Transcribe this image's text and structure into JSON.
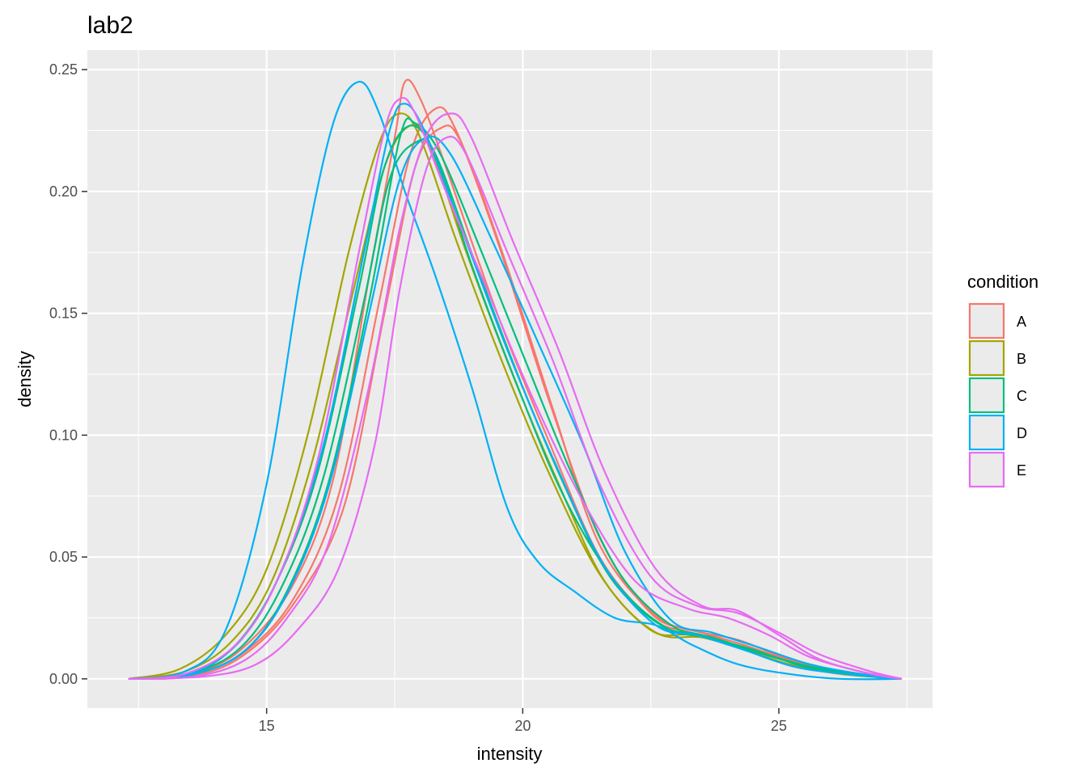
{
  "chart_data": {
    "type": "line",
    "title": "lab2",
    "xlabel": "intensity",
    "ylabel": "density",
    "xlim": [
      11.5,
      28.0
    ],
    "ylim": [
      -0.012,
      0.258
    ],
    "x_ticks": [
      15,
      20,
      25
    ],
    "x_tick_labels": [
      "15",
      "20",
      "25"
    ],
    "y_ticks": [
      0.0,
      0.05,
      0.1,
      0.15,
      0.2,
      0.25
    ],
    "y_tick_labels": [
      "0.00",
      "0.05",
      "0.10",
      "0.15",
      "0.20",
      "0.25"
    ],
    "grid": true,
    "legend": {
      "title": "condition",
      "placement": "right",
      "entries": [
        {
          "label": "A",
          "color": "#F8766D"
        },
        {
          "label": "B",
          "color": "#A3A500"
        },
        {
          "label": "C",
          "color": "#00BF7D"
        },
        {
          "label": "D",
          "color": "#00B0F6"
        },
        {
          "label": "E",
          "color": "#E76BF3"
        }
      ]
    },
    "series": [
      {
        "condition": "A",
        "color": "#F8766D",
        "points": [
          [
            12.3,
            0.0
          ],
          [
            13.5,
            0.002
          ],
          [
            14.5,
            0.012
          ],
          [
            15.5,
            0.038
          ],
          [
            16.3,
            0.082
          ],
          [
            17.0,
            0.165
          ],
          [
            17.5,
            0.222
          ],
          [
            17.7,
            0.245
          ],
          [
            18.0,
            0.238
          ],
          [
            18.5,
            0.21
          ],
          [
            19.5,
            0.15
          ],
          [
            20.5,
            0.098
          ],
          [
            21.5,
            0.05
          ],
          [
            22.5,
            0.025
          ],
          [
            23.3,
            0.019
          ],
          [
            24.0,
            0.015
          ],
          [
            25.0,
            0.007
          ],
          [
            26.0,
            0.003
          ],
          [
            27.4,
            0.0
          ]
        ]
      },
      {
        "condition": "A",
        "color": "#F8766D",
        "points": [
          [
            12.3,
            0.0
          ],
          [
            13.5,
            0.002
          ],
          [
            14.5,
            0.01
          ],
          [
            15.5,
            0.032
          ],
          [
            16.4,
            0.075
          ],
          [
            17.2,
            0.155
          ],
          [
            17.8,
            0.215
          ],
          [
            18.3,
            0.234
          ],
          [
            18.7,
            0.225
          ],
          [
            19.5,
            0.18
          ],
          [
            20.5,
            0.115
          ],
          [
            21.5,
            0.058
          ],
          [
            22.5,
            0.027
          ],
          [
            23.3,
            0.02
          ],
          [
            24.2,
            0.016
          ],
          [
            25.2,
            0.008
          ],
          [
            26.2,
            0.003
          ],
          [
            27.4,
            0.0
          ]
        ]
      },
      {
        "condition": "A",
        "color": "#F8766D",
        "points": [
          [
            12.3,
            0.0
          ],
          [
            13.5,
            0.001
          ],
          [
            14.5,
            0.009
          ],
          [
            15.5,
            0.03
          ],
          [
            16.5,
            0.07
          ],
          [
            17.3,
            0.15
          ],
          [
            17.9,
            0.21
          ],
          [
            18.4,
            0.226
          ],
          [
            18.8,
            0.22
          ],
          [
            19.6,
            0.175
          ],
          [
            20.6,
            0.11
          ],
          [
            21.5,
            0.055
          ],
          [
            22.6,
            0.026
          ],
          [
            23.5,
            0.019
          ],
          [
            24.3,
            0.014
          ],
          [
            25.3,
            0.007
          ],
          [
            26.3,
            0.003
          ],
          [
            27.4,
            0.0
          ]
        ]
      },
      {
        "condition": "B",
        "color": "#A3A500",
        "points": [
          [
            12.3,
            0.0
          ],
          [
            13.3,
            0.004
          ],
          [
            14.2,
            0.018
          ],
          [
            15.0,
            0.045
          ],
          [
            15.8,
            0.1
          ],
          [
            16.6,
            0.175
          ],
          [
            17.2,
            0.22
          ],
          [
            17.6,
            0.232
          ],
          [
            18.0,
            0.222
          ],
          [
            18.7,
            0.18
          ],
          [
            19.6,
            0.13
          ],
          [
            20.5,
            0.085
          ],
          [
            21.5,
            0.043
          ],
          [
            22.5,
            0.02
          ],
          [
            23.3,
            0.018
          ],
          [
            24.2,
            0.013
          ],
          [
            25.2,
            0.006
          ],
          [
            26.2,
            0.002
          ],
          [
            27.4,
            0.0
          ]
        ]
      },
      {
        "condition": "B",
        "color": "#A3A500",
        "points": [
          [
            12.3,
            0.0
          ],
          [
            13.4,
            0.003
          ],
          [
            14.3,
            0.015
          ],
          [
            15.1,
            0.04
          ],
          [
            15.9,
            0.09
          ],
          [
            16.7,
            0.16
          ],
          [
            17.3,
            0.21
          ],
          [
            17.8,
            0.227
          ],
          [
            18.2,
            0.218
          ],
          [
            18.9,
            0.175
          ],
          [
            19.8,
            0.125
          ],
          [
            20.7,
            0.08
          ],
          [
            21.6,
            0.04
          ],
          [
            22.6,
            0.019
          ],
          [
            23.5,
            0.017
          ],
          [
            24.4,
            0.012
          ],
          [
            25.4,
            0.006
          ],
          [
            26.4,
            0.002
          ],
          [
            27.4,
            0.0
          ]
        ]
      },
      {
        "condition": "C",
        "color": "#00BF7D",
        "points": [
          [
            12.3,
            0.0
          ],
          [
            13.5,
            0.002
          ],
          [
            14.4,
            0.014
          ],
          [
            15.2,
            0.04
          ],
          [
            16.0,
            0.085
          ],
          [
            16.8,
            0.16
          ],
          [
            17.3,
            0.21
          ],
          [
            17.8,
            0.227
          ],
          [
            18.3,
            0.215
          ],
          [
            19.0,
            0.175
          ],
          [
            19.9,
            0.125
          ],
          [
            20.8,
            0.08
          ],
          [
            21.7,
            0.042
          ],
          [
            22.7,
            0.022
          ],
          [
            23.5,
            0.018
          ],
          [
            24.4,
            0.012
          ],
          [
            25.4,
            0.006
          ],
          [
            26.4,
            0.002
          ],
          [
            27.4,
            0.0
          ]
        ]
      },
      {
        "condition": "C",
        "color": "#00BF7D",
        "points": [
          [
            12.3,
            0.0
          ],
          [
            13.5,
            0.002
          ],
          [
            14.5,
            0.013
          ],
          [
            15.3,
            0.038
          ],
          [
            16.1,
            0.082
          ],
          [
            16.9,
            0.155
          ],
          [
            17.4,
            0.205
          ],
          [
            17.9,
            0.22
          ],
          [
            18.3,
            0.215
          ],
          [
            19.0,
            0.17
          ],
          [
            19.9,
            0.12
          ],
          [
            20.8,
            0.075
          ],
          [
            21.8,
            0.04
          ],
          [
            22.8,
            0.021
          ],
          [
            23.6,
            0.017
          ],
          [
            24.5,
            0.012
          ],
          [
            25.5,
            0.005
          ],
          [
            26.5,
            0.002
          ],
          [
            27.4,
            0.0
          ]
        ]
      },
      {
        "condition": "C",
        "color": "#00BF7D",
        "points": [
          [
            12.3,
            0.0
          ],
          [
            13.6,
            0.002
          ],
          [
            14.6,
            0.012
          ],
          [
            15.4,
            0.036
          ],
          [
            16.2,
            0.08
          ],
          [
            17.0,
            0.155
          ],
          [
            17.6,
            0.222
          ],
          [
            17.9,
            0.228
          ],
          [
            18.4,
            0.215
          ],
          [
            19.2,
            0.175
          ],
          [
            20.1,
            0.128
          ],
          [
            21.0,
            0.082
          ],
          [
            21.9,
            0.043
          ],
          [
            22.9,
            0.022
          ],
          [
            23.7,
            0.017
          ],
          [
            24.6,
            0.011
          ],
          [
            25.6,
            0.005
          ],
          [
            26.6,
            0.002
          ],
          [
            27.4,
            0.0
          ]
        ]
      },
      {
        "condition": "D",
        "color": "#00B0F6",
        "points": [
          [
            12.3,
            0.0
          ],
          [
            13.4,
            0.003
          ],
          [
            14.2,
            0.02
          ],
          [
            15.0,
            0.08
          ],
          [
            15.7,
            0.17
          ],
          [
            16.3,
            0.228
          ],
          [
            16.8,
            0.245
          ],
          [
            17.2,
            0.232
          ],
          [
            17.7,
            0.2
          ],
          [
            18.3,
            0.165
          ],
          [
            19.0,
            0.12
          ],
          [
            19.7,
            0.07
          ],
          [
            20.3,
            0.048
          ],
          [
            21.0,
            0.036
          ],
          [
            21.8,
            0.025
          ],
          [
            22.6,
            0.022
          ],
          [
            23.3,
            0.014
          ],
          [
            24.2,
            0.006
          ],
          [
            25.2,
            0.002
          ],
          [
            26.2,
            0.0
          ],
          [
            27.4,
            0.0
          ]
        ]
      },
      {
        "condition": "D",
        "color": "#00B0F6",
        "points": [
          [
            12.3,
            0.0
          ],
          [
            13.5,
            0.002
          ],
          [
            14.5,
            0.016
          ],
          [
            15.3,
            0.045
          ],
          [
            16.1,
            0.095
          ],
          [
            16.9,
            0.175
          ],
          [
            17.4,
            0.225
          ],
          [
            17.7,
            0.236
          ],
          [
            18.1,
            0.224
          ],
          [
            18.8,
            0.185
          ],
          [
            19.7,
            0.135
          ],
          [
            20.6,
            0.09
          ],
          [
            21.6,
            0.046
          ],
          [
            22.6,
            0.022
          ],
          [
            23.4,
            0.018
          ],
          [
            24.3,
            0.012
          ],
          [
            25.3,
            0.005
          ],
          [
            26.3,
            0.002
          ],
          [
            27.4,
            0.0
          ]
        ]
      },
      {
        "condition": "D",
        "color": "#00B0F6",
        "points": [
          [
            12.3,
            0.0
          ],
          [
            13.6,
            0.002
          ],
          [
            14.6,
            0.012
          ],
          [
            15.4,
            0.035
          ],
          [
            16.2,
            0.078
          ],
          [
            17.0,
            0.15
          ],
          [
            17.6,
            0.205
          ],
          [
            18.1,
            0.222
          ],
          [
            18.6,
            0.215
          ],
          [
            19.4,
            0.18
          ],
          [
            20.3,
            0.138
          ],
          [
            21.2,
            0.095
          ],
          [
            22.0,
            0.052
          ],
          [
            22.9,
            0.024
          ],
          [
            23.7,
            0.019
          ],
          [
            24.6,
            0.013
          ],
          [
            25.6,
            0.006
          ],
          [
            26.6,
            0.002
          ],
          [
            27.4,
            0.0
          ]
        ]
      },
      {
        "condition": "E",
        "color": "#E76BF3",
        "points": [
          [
            12.3,
            0.0
          ],
          [
            13.4,
            0.002
          ],
          [
            14.4,
            0.014
          ],
          [
            15.2,
            0.04
          ],
          [
            16.0,
            0.09
          ],
          [
            16.8,
            0.175
          ],
          [
            17.3,
            0.225
          ],
          [
            17.6,
            0.238
          ],
          [
            17.9,
            0.232
          ],
          [
            18.5,
            0.2
          ],
          [
            19.3,
            0.16
          ],
          [
            20.2,
            0.115
          ],
          [
            21.2,
            0.072
          ],
          [
            22.2,
            0.04
          ],
          [
            23.2,
            0.029
          ],
          [
            24.0,
            0.025
          ],
          [
            24.8,
            0.018
          ],
          [
            25.6,
            0.009
          ],
          [
            26.6,
            0.003
          ],
          [
            27.4,
            0.0
          ]
        ]
      },
      {
        "condition": "E",
        "color": "#E76BF3",
        "points": [
          [
            12.3,
            0.0
          ],
          [
            13.6,
            0.001
          ],
          [
            14.6,
            0.008
          ],
          [
            15.4,
            0.025
          ],
          [
            16.2,
            0.055
          ],
          [
            17.0,
            0.12
          ],
          [
            17.6,
            0.185
          ],
          [
            18.1,
            0.222
          ],
          [
            18.6,
            0.232
          ],
          [
            19.0,
            0.222
          ],
          [
            19.8,
            0.18
          ],
          [
            20.7,
            0.135
          ],
          [
            21.6,
            0.085
          ],
          [
            22.6,
            0.045
          ],
          [
            23.5,
            0.03
          ],
          [
            24.2,
            0.028
          ],
          [
            25.0,
            0.018
          ],
          [
            25.8,
            0.008
          ],
          [
            26.8,
            0.002
          ],
          [
            27.4,
            0.0
          ]
        ]
      },
      {
        "condition": "E",
        "color": "#E76BF3",
        "points": [
          [
            12.3,
            0.0
          ],
          [
            13.8,
            0.001
          ],
          [
            14.8,
            0.006
          ],
          [
            15.6,
            0.02
          ],
          [
            16.4,
            0.045
          ],
          [
            17.1,
            0.095
          ],
          [
            17.6,
            0.16
          ],
          [
            18.1,
            0.208
          ],
          [
            18.5,
            0.222
          ],
          [
            18.9,
            0.215
          ],
          [
            19.7,
            0.175
          ],
          [
            20.6,
            0.13
          ],
          [
            21.5,
            0.08
          ],
          [
            22.5,
            0.042
          ],
          [
            23.4,
            0.03
          ],
          [
            24.2,
            0.027
          ],
          [
            25.0,
            0.019
          ],
          [
            25.8,
            0.01
          ],
          [
            26.8,
            0.003
          ],
          [
            27.4,
            0.0
          ]
        ]
      }
    ]
  }
}
